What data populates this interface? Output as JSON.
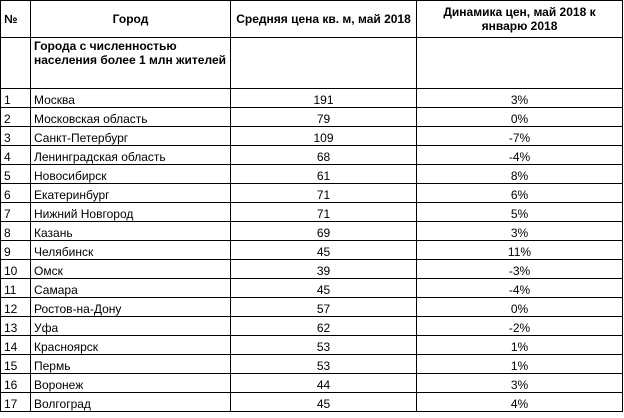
{
  "table": {
    "headers": [
      "№",
      "Город",
      "Средняя цена кв. м, май 2018",
      "Динамика цен, май 2018 к январю 2018"
    ],
    "group_label": "Города с численностью населения более 1 млн жителей",
    "rows": [
      {
        "n": "1",
        "city": "Москва",
        "price": "191",
        "change": "3%"
      },
      {
        "n": "2",
        "city": "Московская область",
        "price": "79",
        "change": "0%"
      },
      {
        "n": "3",
        "city": "Санкт-Петербург",
        "price": "109",
        "change": "-7%"
      },
      {
        "n": "4",
        "city": "Ленинградская область",
        "price": "68",
        "change": "-4%"
      },
      {
        "n": "5",
        "city": "Новосибирск",
        "price": "61",
        "change": "8%"
      },
      {
        "n": "6",
        "city": "Екатеринбург",
        "price": "71",
        "change": "6%"
      },
      {
        "n": "7",
        "city": "Нижний Новгород",
        "price": "71",
        "change": "5%"
      },
      {
        "n": "8",
        "city": "Казань",
        "price": "69",
        "change": "3%"
      },
      {
        "n": "9",
        "city": "Челябинск",
        "price": "45",
        "change": "11%"
      },
      {
        "n": "10",
        "city": "Омск",
        "price": "39",
        "change": "-3%"
      },
      {
        "n": "11",
        "city": "Самара",
        "price": "45",
        "change": "-4%"
      },
      {
        "n": "12",
        "city": "Ростов-на-Дону",
        "price": "57",
        "change": "0%"
      },
      {
        "n": "13",
        "city": "Уфа",
        "price": "62",
        "change": "-2%"
      },
      {
        "n": "14",
        "city": "Красноярск",
        "price": "53",
        "change": "1%"
      },
      {
        "n": "15",
        "city": "Пермь",
        "price": "53",
        "change": "1%"
      },
      {
        "n": "16",
        "city": "Воронеж",
        "price": "44",
        "change": "3%"
      },
      {
        "n": "17",
        "city": "Волгоград",
        "price": "45",
        "change": "4%"
      }
    ]
  }
}
